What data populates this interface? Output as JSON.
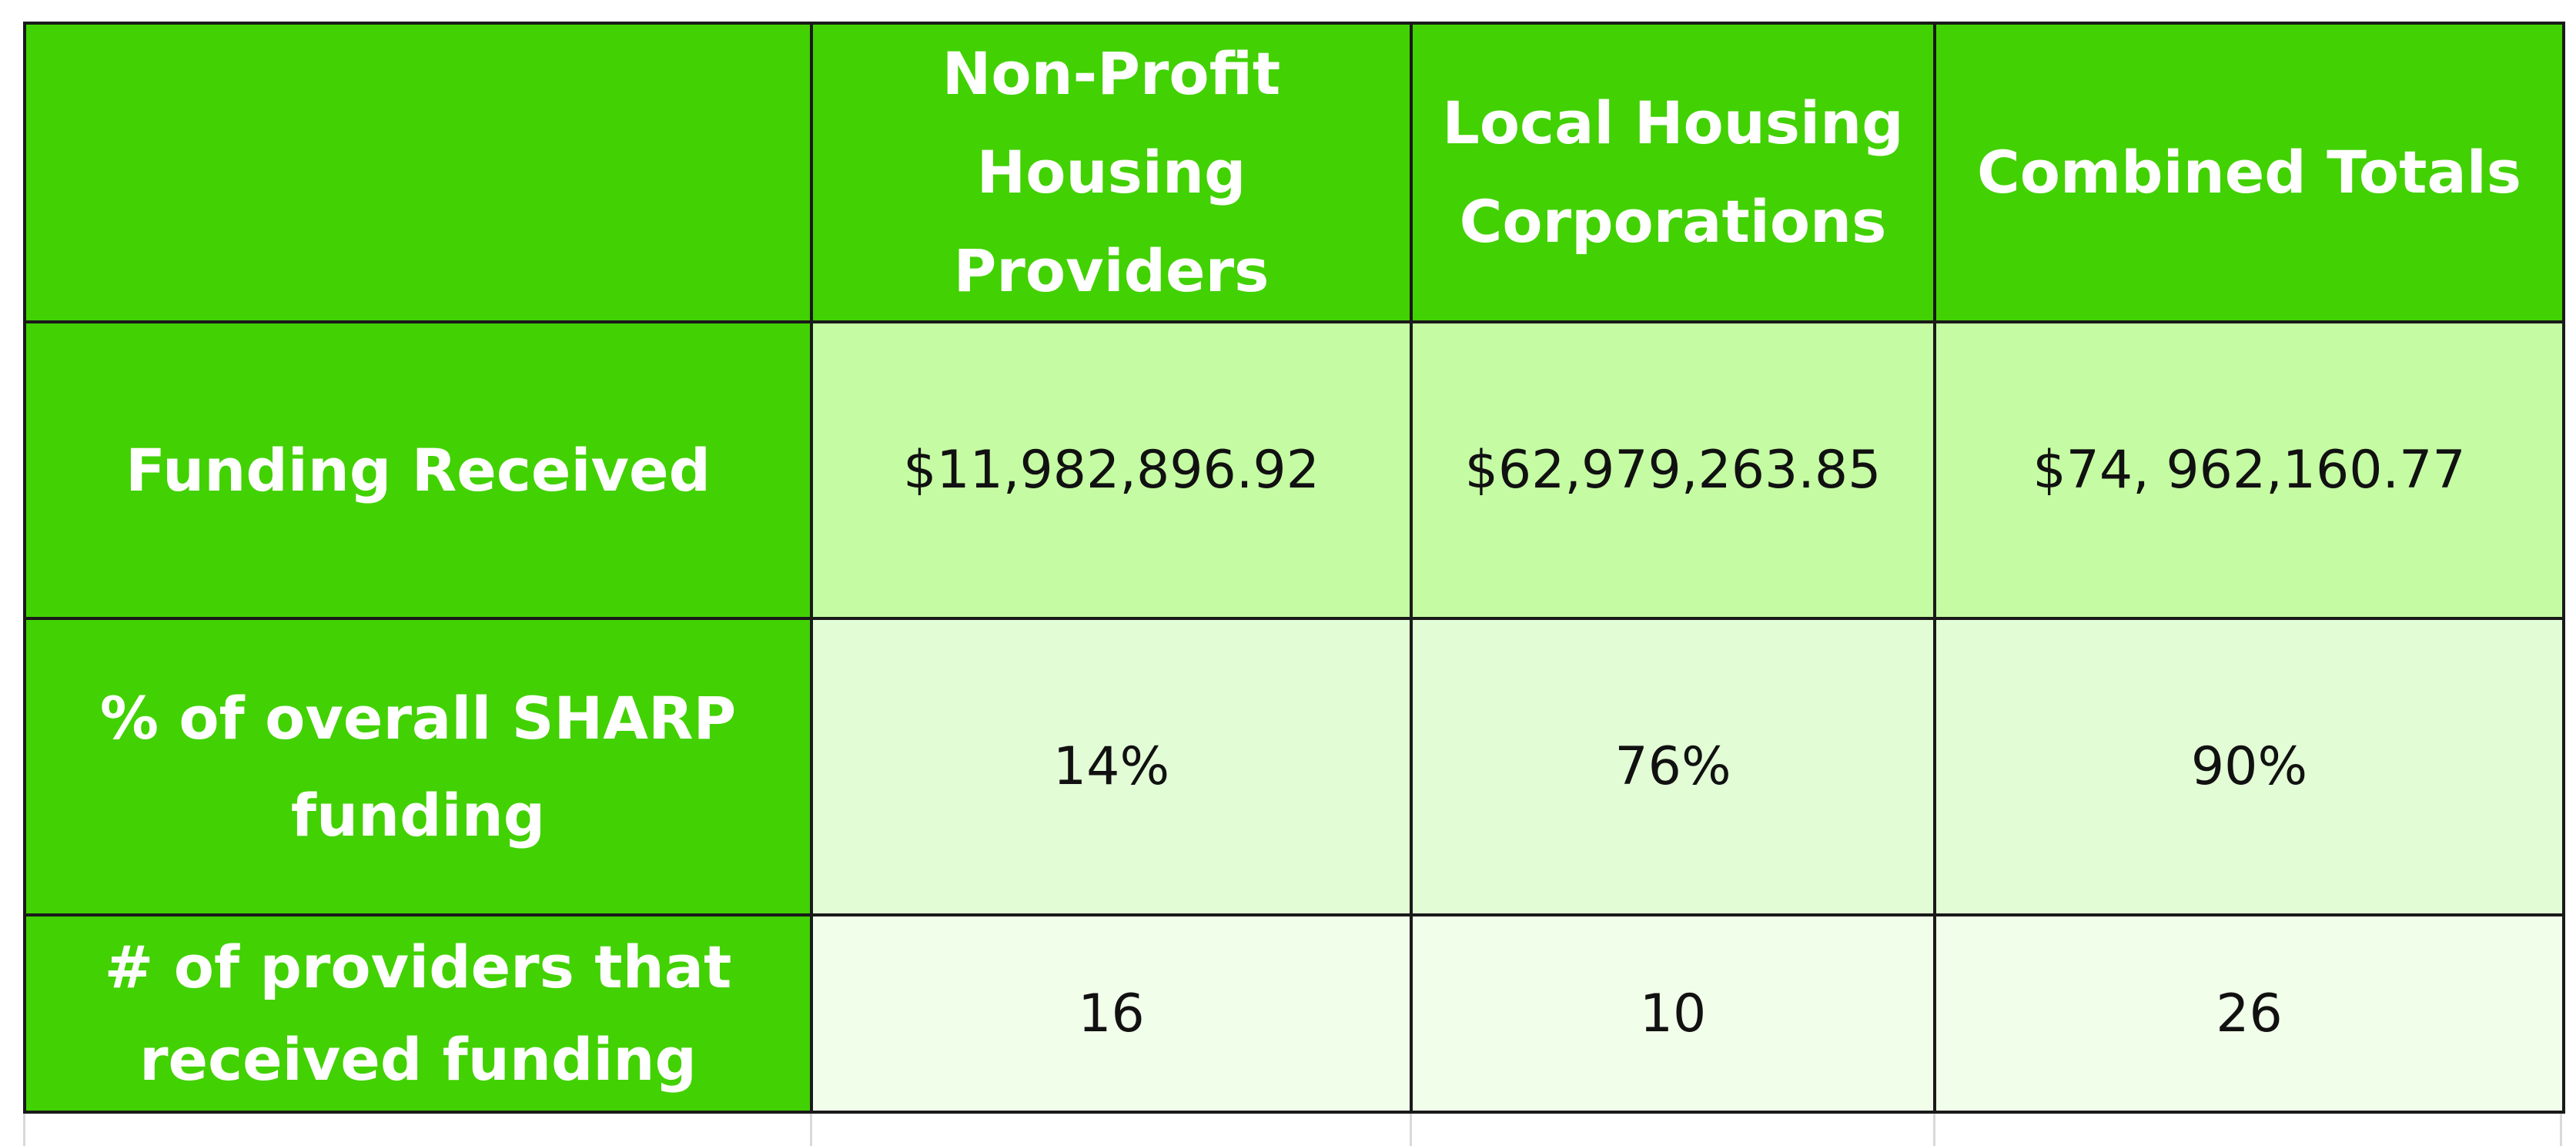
{
  "table": {
    "columns": [
      "",
      "Non-Profit Housing Providers",
      "Local Housing Corporations",
      "Combined Totals"
    ],
    "rows": [
      {
        "label": "Funding Received",
        "values": [
          "$11,982,896.92",
          "$62,979,263.85",
          "$74, 962,160.77"
        ]
      },
      {
        "label": "% of overall SHARP funding",
        "values": [
          "14%",
          "76%",
          "90%"
        ]
      },
      {
        "label": "# of providers that received funding",
        "values": [
          "16",
          "10",
          "26"
        ]
      }
    ]
  },
  "colors": {
    "header_green": "#42d102",
    "row1_fill": "#c5fca3",
    "row2_fill": "#e2fcd6",
    "row3_fill": "#f1feea",
    "border": "#1a1a1a"
  }
}
